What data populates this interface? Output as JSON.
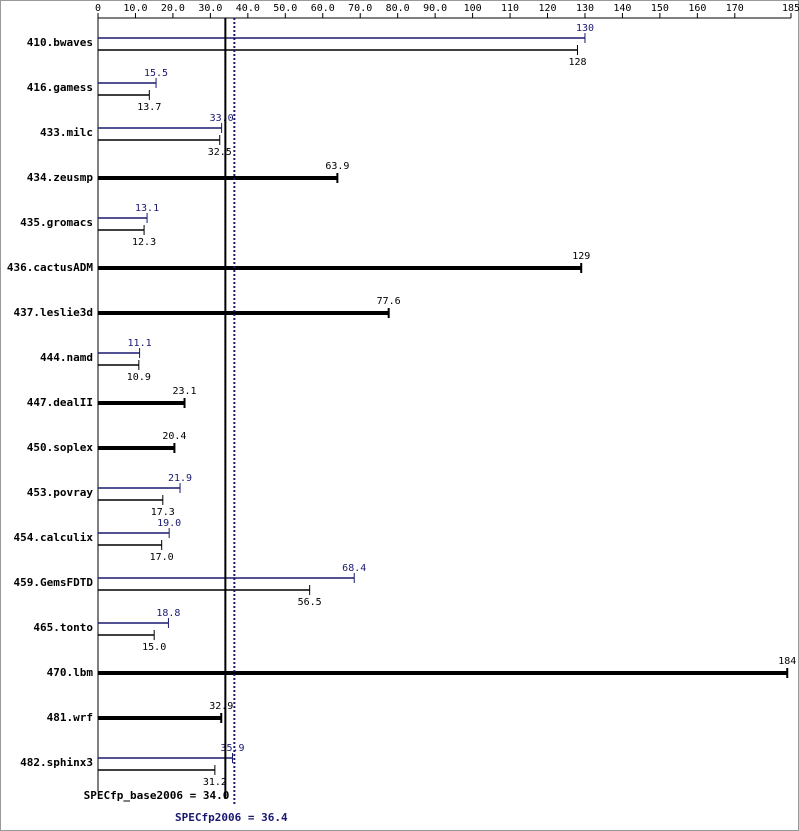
{
  "chart_data": {
    "type": "bar",
    "orientation": "horizontal",
    "categories": [
      "410.bwaves",
      "416.gamess",
      "433.milc",
      "434.zeusmp",
      "435.gromacs",
      "436.cactusADM",
      "437.leslie3d",
      "444.namd",
      "447.dealII",
      "450.soplex",
      "453.povray",
      "454.calculix",
      "459.GemsFDTD",
      "465.tonto",
      "470.lbm",
      "481.wrf",
      "482.sphinx3"
    ],
    "series": [
      {
        "color": "#191970",
        "values": [
          130,
          15.5,
          33.0,
          null,
          13.1,
          null,
          null,
          11.1,
          null,
          null,
          21.9,
          19.0,
          68.4,
          18.8,
          null,
          null,
          35.9
        ],
        "value_labels": [
          "130",
          "15.5",
          "33.0",
          null,
          "13.1",
          null,
          null,
          "11.1",
          null,
          null,
          "21.9",
          "19.0",
          "68.4",
          "18.8",
          null,
          null,
          "35.9"
        ]
      },
      {
        "color": "#000000",
        "values": [
          128,
          13.7,
          32.5,
          63.9,
          12.3,
          129,
          77.6,
          10.9,
          23.1,
          20.4,
          17.3,
          17.0,
          56.5,
          15.0,
          184,
          32.9,
          31.2
        ],
        "value_labels": [
          "128",
          "13.7",
          "32.5",
          "63.9",
          "12.3",
          "129",
          "77.6",
          "10.9",
          "23.1",
          "20.4",
          "17.3",
          "17.0",
          "56.5",
          "15.0",
          "184",
          "32.9",
          "31.2"
        ]
      }
    ],
    "xlim": [
      0,
      185
    ],
    "xticks": [
      0,
      {
        "value": 10,
        "label": "10.0"
      },
      {
        "value": 20,
        "label": "20.0"
      },
      {
        "value": 30,
        "label": "30.0"
      },
      {
        "value": 40,
        "label": "40.0"
      },
      {
        "value": 50,
        "label": "50.0"
      },
      {
        "value": 60,
        "label": "60.0"
      },
      {
        "value": 70,
        "label": "70.0"
      },
      {
        "value": 80,
        "label": "80.0"
      },
      {
        "value": 90,
        "label": "90.0"
      },
      100,
      110,
      120,
      130,
      140,
      150,
      160,
      170,
      185
    ],
    "reference_lines": [
      {
        "label": "SPECfp_base2006 =",
        "value": 34.0,
        "value_label": "34.0",
        "color": "#000000"
      },
      {
        "label": "SPECfp2006 =",
        "value": 36.4,
        "value_label": "36.4",
        "color": "#191970"
      }
    ]
  }
}
